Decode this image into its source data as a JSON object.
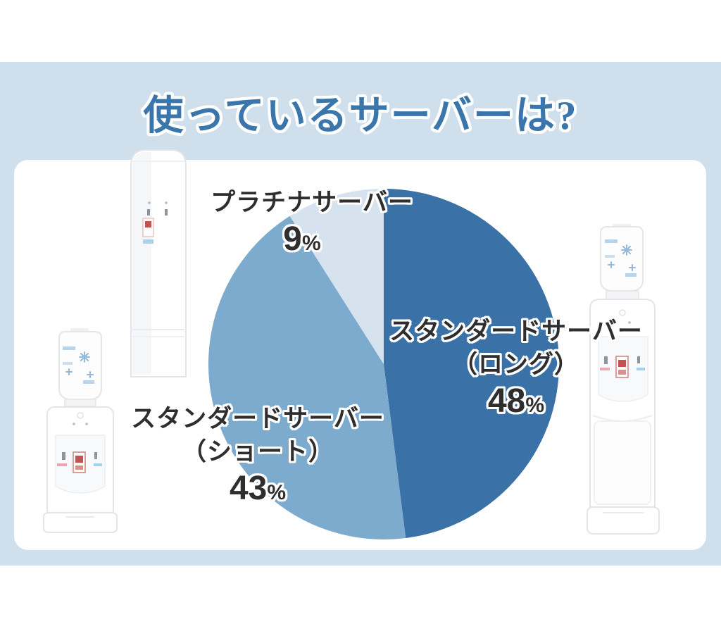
{
  "theme": {
    "band_color": "#cfdfec",
    "card_color": "#ffffff",
    "title_color": "#3a76ac",
    "label_text_color": "#2e2e2e"
  },
  "title": {
    "text": "使っているサーバーは?"
  },
  "chart_data": {
    "type": "pie",
    "title": "使っているサーバーは?",
    "start_angle_deg": 0,
    "direction": "clockwise",
    "legend": false,
    "slices": [
      {
        "key": "long",
        "label": "スタンダードサーバー（ロング）",
        "value": 48,
        "color": "#3a71a7"
      },
      {
        "key": "short",
        "label": "スタンダードサーバー（ショート）",
        "value": 43,
        "color": "#7dabce"
      },
      {
        "key": "platinum",
        "label": "プラチナサーバー",
        "value": 9,
        "color": "#d7e2ef"
      }
    ]
  },
  "labels": {
    "platinum": {
      "line1": "プラチナサーバー",
      "value": "9",
      "unit": "%"
    },
    "long": {
      "line1": "スタンダードサーバー",
      "line2": "（ロング）",
      "value": "48",
      "unit": "%"
    },
    "short": {
      "line1": "スタンダードサーバー",
      "line2": "（ショート）",
      "value": "43",
      "unit": "%"
    }
  },
  "illustrations": {
    "left_tall_server": "white floor-standing water server",
    "left_short_server": "white tabletop water server with bottle",
    "right_tall_server": "white floor-standing water server with bottle"
  }
}
